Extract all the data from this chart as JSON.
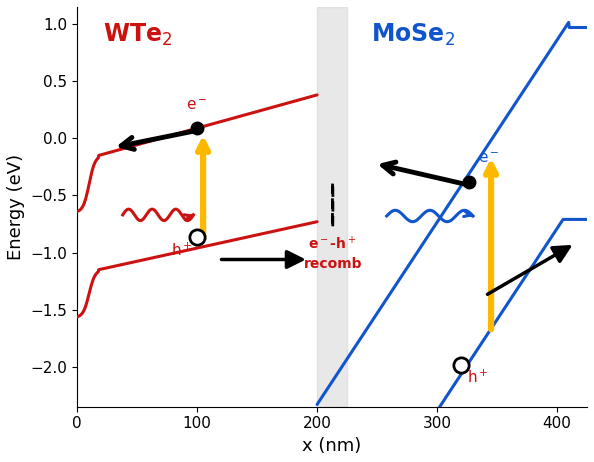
{
  "xlim": [
    0,
    425
  ],
  "ylim": [
    -2.35,
    1.15
  ],
  "xlabel": "x (nm)",
  "ylabel": "Energy (eV)",
  "junction_x1": 200,
  "junction_x2": 225,
  "junction_color": "#cccccc",
  "WTe2_color": "#cc1111",
  "MoSe2_color": "#1155cc",
  "gold_color": "#FFB800",
  "arrow_lw": 2.5,
  "band_lw": 2.2,
  "background_color": "#ffffff",
  "xticks": [
    0,
    100,
    200,
    300,
    400
  ],
  "yticks": [
    -2.0,
    -1.5,
    -1.0,
    -0.5,
    0.0,
    0.5,
    1.0
  ]
}
